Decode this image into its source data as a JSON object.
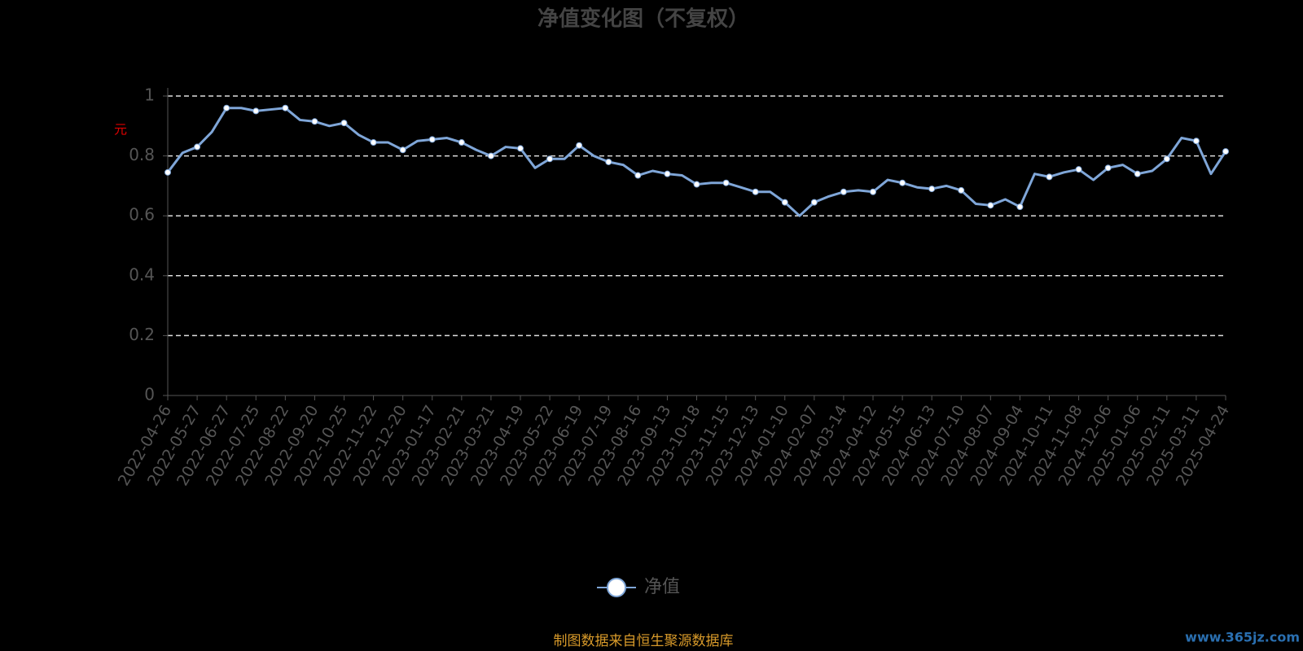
{
  "chart_data": {
    "type": "line",
    "title": "净值变化图（不复权）",
    "y_label": "元",
    "source": "制图数据来自恒生聚源数据库",
    "watermark": "www.365jz.com",
    "x": [
      "2022-04-26",
      null,
      "2022-05-27",
      null,
      "2022-06-27",
      null,
      "2022-07-25",
      null,
      "2022-08-22",
      null,
      "2022-09-20",
      null,
      "2022-10-25",
      null,
      "2022-11-22",
      null,
      "2022-12-20",
      null,
      "2023-01-17",
      null,
      "2023-02-21",
      null,
      "2023-03-21",
      null,
      "2023-04-19",
      null,
      "2023-05-22",
      null,
      "2023-06-19",
      null,
      "2023-07-19",
      null,
      "2023-08-16",
      null,
      "2023-09-13",
      null,
      "2023-10-18",
      null,
      "2023-11-15",
      null,
      "2023-12-13",
      null,
      "2024-01-10",
      null,
      "2024-02-07",
      null,
      "2024-03-14",
      null,
      "2024-04-12",
      null,
      "2024-05-15",
      null,
      "2024-06-13",
      null,
      "2024-07-10",
      null,
      "2024-08-07",
      null,
      "2024-09-04",
      null,
      "2024-10-11",
      null,
      "2024-11-08",
      null,
      "2024-12-06",
      null,
      "2025-01-06",
      null,
      "2025-02-11",
      null,
      "2025-03-11",
      null,
      "2025-04-24"
    ],
    "series": [
      {
        "name": "净值",
        "color": "#7fa6d8",
        "values": [
          0.745,
          0.81,
          0.83,
          0.88,
          0.96,
          0.96,
          0.95,
          0.955,
          0.96,
          0.92,
          0.915,
          0.9,
          0.91,
          0.87,
          0.845,
          0.845,
          0.82,
          0.85,
          0.855,
          0.86,
          0.845,
          0.82,
          0.8,
          0.83,
          0.825,
          0.76,
          0.79,
          0.79,
          0.835,
          0.8,
          0.78,
          0.77,
          0.735,
          0.75,
          0.74,
          0.735,
          0.705,
          0.71,
          0.71,
          0.695,
          0.68,
          0.68,
          0.645,
          0.6,
          0.645,
          0.665,
          0.68,
          0.685,
          0.68,
          0.72,
          0.71,
          0.695,
          0.69,
          0.7,
          0.685,
          0.64,
          0.635,
          0.655,
          0.63,
          0.74,
          0.73,
          0.745,
          0.755,
          0.72,
          0.76,
          0.77,
          0.74,
          0.75,
          0.79,
          0.86,
          0.85,
          0.74,
          0.815
        ]
      }
    ],
    "ylim": [
      0,
      1
    ],
    "yticks": [
      0,
      0.2,
      0.4,
      0.6,
      0.8,
      1
    ],
    "grid": true
  }
}
